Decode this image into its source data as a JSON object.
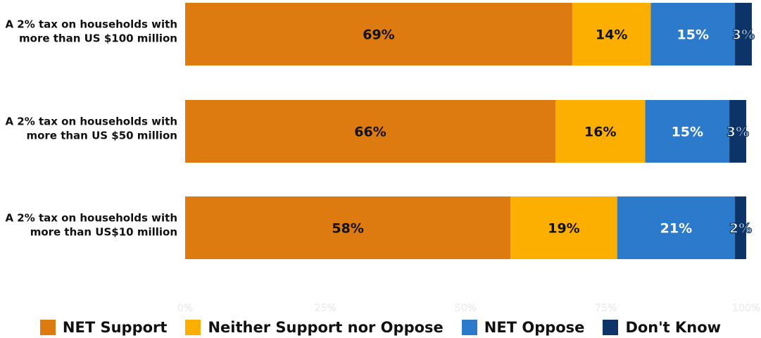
{
  "chart_data": {
    "type": "bar",
    "orientation": "horizontal",
    "stacked": true,
    "categories": [
      [
        "A 2% tax on households with",
        "more than US $100 million"
      ],
      [
        "A 2% tax on households with",
        "more than US $50 million"
      ],
      [
        "A 2% tax on households with",
        "more than US$10 million"
      ]
    ],
    "series": [
      {
        "name": "NET Support",
        "color": "#DD7A10",
        "values": [
          69,
          66,
          58
        ],
        "labels": [
          "69%",
          "66%",
          "58%"
        ]
      },
      {
        "name": "Neither Support nor Oppose",
        "color": "#FDAF00",
        "values": [
          14,
          16,
          19
        ],
        "labels": [
          "14%",
          "16%",
          "19%"
        ]
      },
      {
        "name": "NET Oppose",
        "color": "#2B7ACB",
        "values": [
          15,
          15,
          21
        ],
        "labels": [
          "15%",
          "15%",
          "21%"
        ]
      },
      {
        "name": "Don't Know",
        "color": "#0C3468",
        "values": [
          3,
          3,
          2
        ],
        "labels": [
          "3%",
          "3%",
          "2%"
        ]
      }
    ],
    "xlim": [
      0,
      100
    ],
    "xticks": [
      "0%",
      "25%",
      "50%",
      "75%",
      "100%"
    ],
    "legend_position": "bottom",
    "grid": false
  }
}
